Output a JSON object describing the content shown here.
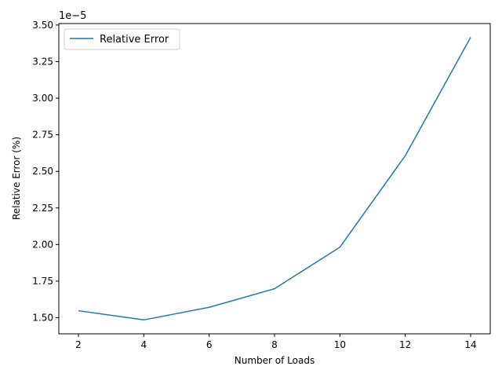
{
  "chart_data": {
    "type": "line",
    "title": "",
    "xlabel": "Number of Loads",
    "ylabel": "Relative Error (%)",
    "y_offset_label": "1e−5",
    "xlim": [
      1.4,
      14.6
    ],
    "ylim": [
      1.39,
      3.51
    ],
    "x_ticks": [
      2,
      4,
      6,
      8,
      10,
      12,
      14
    ],
    "x_tick_labels": [
      "2",
      "4",
      "6",
      "8",
      "10",
      "12",
      "14"
    ],
    "y_ticks": [
      1.5,
      1.75,
      2.0,
      2.25,
      2.5,
      2.75,
      3.0,
      3.25,
      3.5
    ],
    "y_tick_labels": [
      "1.50",
      "1.75",
      "2.00",
      "2.25",
      "2.50",
      "2.75",
      "3.00",
      "3.25",
      "3.50"
    ],
    "grid": false,
    "legend_position": "top-left",
    "series": [
      {
        "name": "Relative Error",
        "color": "#1f77b4",
        "x": [
          2,
          4,
          6,
          8,
          10,
          12,
          14
        ],
        "y": [
          1.548,
          1.485,
          1.571,
          1.698,
          1.982,
          2.607,
          3.416
        ]
      }
    ]
  }
}
